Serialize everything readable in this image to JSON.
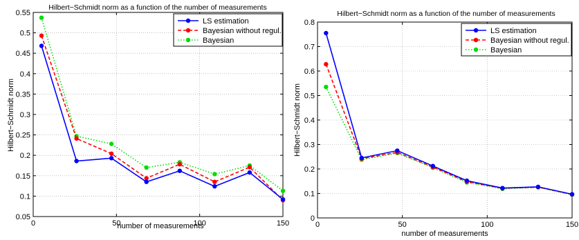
{
  "chart_data": [
    {
      "type": "line",
      "title": "Hilbert−Schmidt norm as a function of the number of measurements",
      "xlabel": "number of measurements",
      "ylabel": "Hilbert−Schmidt norm",
      "xlim": [
        0,
        150
      ],
      "ylim": [
        0.05,
        0.55
      ],
      "xticks": [
        0,
        50,
        100,
        150
      ],
      "xtick_labels": [
        "0",
        "50",
        "100",
        "150"
      ],
      "yticks": [
        0.05,
        0.1,
        0.15,
        0.2,
        0.25,
        0.3,
        0.35,
        0.4,
        0.45,
        0.5,
        0.55
      ],
      "ytick_labels": [
        "0.05",
        "0.1",
        "0.15",
        "0.2",
        "0.25",
        "0.3",
        "0.35",
        "0.4",
        "0.45",
        "0.5",
        "0.55"
      ],
      "grid": true,
      "legend_position": "top-right",
      "x": [
        5,
        26,
        47,
        68,
        88,
        109,
        130,
        150
      ],
      "series": [
        {
          "name": "LS estimation",
          "color": "#0000ff",
          "style": "solid",
          "values": [
            0.468,
            0.186,
            0.193,
            0.135,
            0.162,
            0.124,
            0.158,
            0.092
          ]
        },
        {
          "name": "Bayesian without regul.",
          "color": "#ff0000",
          "style": "dashed",
          "values": [
            0.493,
            0.241,
            0.204,
            0.144,
            0.178,
            0.135,
            0.171,
            0.09
          ]
        },
        {
          "name": "Bayesian",
          "color": "#00dd00",
          "style": "dotted",
          "values": [
            0.537,
            0.247,
            0.228,
            0.17,
            0.183,
            0.154,
            0.175,
            0.113
          ]
        }
      ]
    },
    {
      "type": "line",
      "title": "Hilbert−Schmidt norm as a function of the number of measurements",
      "xlabel": "number of measurements",
      "ylabel": "Hilbert−Schmidt norm",
      "xlim": [
        0,
        150
      ],
      "ylim": [
        0,
        0.8
      ],
      "xticks": [
        0,
        50,
        100,
        150
      ],
      "xtick_labels": [
        "0",
        "50",
        "100",
        "150"
      ],
      "yticks": [
        0,
        0.1,
        0.2,
        0.3,
        0.4,
        0.5,
        0.6,
        0.7,
        0.8
      ],
      "ytick_labels": [
        "0",
        "0.1",
        "0.2",
        "0.3",
        "0.4",
        "0.5",
        "0.6",
        "0.7",
        "0.8"
      ],
      "grid": true,
      "legend_position": "top-right",
      "x": [
        5,
        26,
        47,
        68,
        88,
        109,
        130,
        150
      ],
      "series": [
        {
          "name": "LS estimation",
          "color": "#0000ff",
          "style": "solid",
          "values": [
            0.755,
            0.245,
            0.275,
            0.212,
            0.152,
            0.122,
            0.127,
            0.097
          ]
        },
        {
          "name": "Bayesian without regul.",
          "color": "#ff0000",
          "style": "dashed",
          "values": [
            0.628,
            0.242,
            0.268,
            0.208,
            0.148,
            0.121,
            0.126,
            0.096
          ]
        },
        {
          "name": "Bayesian",
          "color": "#00dd00",
          "style": "dotted",
          "values": [
            0.535,
            0.238,
            0.265,
            0.205,
            0.145,
            0.119,
            0.125,
            0.095
          ]
        }
      ]
    }
  ]
}
